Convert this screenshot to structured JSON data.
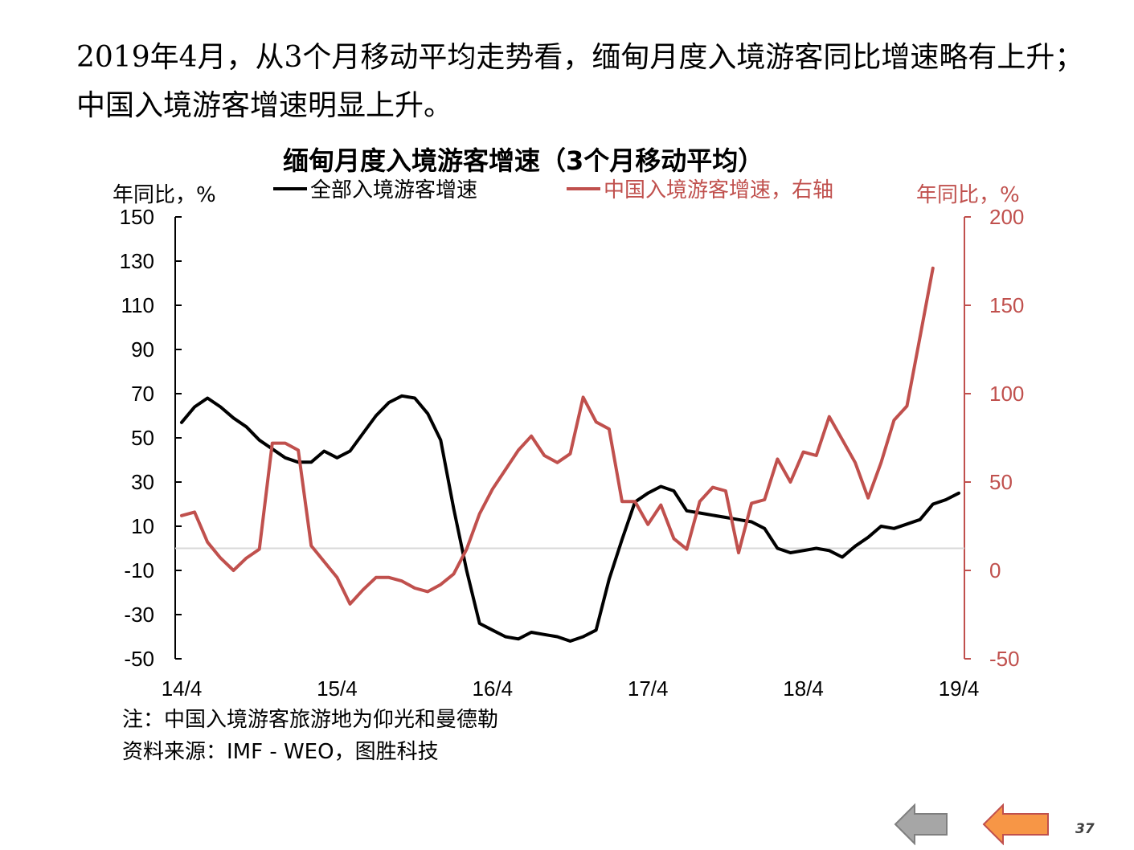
{
  "headline": "2019年4月，从3个月移动平均走势看，缅甸月度入境游客同比增速略有上升；中国入境游客增速明显上升。",
  "notes": {
    "note": "注：中国入境游客旅游地为仰光和曼德勒",
    "source": "资料来源：IMF - WEO，图胜科技"
  },
  "page_number": "37",
  "nav": {
    "prev_icon": "left-arrow-gray-icon",
    "next_icon": "left-arrow-orange-icon"
  },
  "colors": {
    "series_all": "#000000",
    "series_china": "#c0504d",
    "zero_line": "#d9d9d9",
    "nav_gray": "#a6a6a6",
    "nav_orange": "#f79646"
  },
  "chart_data": {
    "type": "line",
    "title": "缅甸月度入境游客增速（3个月移动平均）",
    "ylabel_left": "年同比，%",
    "ylabel_right": "年同比，%",
    "x_tick_labels": [
      "14/4",
      "15/4",
      "16/4",
      "17/4",
      "18/4",
      "19/4"
    ],
    "x_start": "2014-04",
    "x_end": "2019-04",
    "y_left": {
      "min": -50,
      "max": 150,
      "ticks": [
        "150",
        "130",
        "110",
        "90",
        "70",
        "50",
        "30",
        "10",
        "-10",
        "-30",
        "-50"
      ]
    },
    "y_right": {
      "min": -50,
      "max": 200,
      "ticks": [
        "200",
        "150",
        "100",
        "50",
        "0",
        "-50"
      ]
    },
    "legend_placement": "top",
    "series": [
      {
        "name": "全部入境游客增速",
        "axis": "left",
        "values": [
          57,
          64,
          68,
          64,
          59,
          55,
          49,
          45,
          41,
          39,
          39,
          44,
          41,
          44,
          52,
          60,
          66,
          69,
          68,
          61,
          49,
          18,
          -10,
          -34,
          -37,
          -40,
          -41,
          -38,
          -39,
          -40,
          -42,
          -40,
          -37,
          -14,
          4,
          21,
          25,
          28,
          26,
          17,
          16,
          15,
          14,
          13,
          12,
          9,
          0,
          -2,
          -1,
          0,
          -1,
          -4,
          1,
          5,
          10,
          9,
          11,
          13,
          20,
          22,
          25
        ]
      },
      {
        "name": "中国入境游客增速，右轴",
        "axis": "right",
        "values": [
          31,
          33,
          16,
          7,
          0,
          7,
          12,
          72,
          72,
          68,
          14,
          5,
          -4,
          -19,
          -11,
          -4,
          -4,
          -6,
          -10,
          -12,
          -8,
          -2,
          12,
          32,
          46,
          57,
          68,
          76,
          65,
          61,
          66,
          98,
          84,
          80,
          39,
          39,
          26,
          37,
          18,
          12,
          39,
          47,
          45,
          10,
          38,
          40,
          63,
          50,
          67,
          65,
          87,
          74,
          61,
          41,
          61,
          85,
          93,
          132,
          171
        ]
      }
    ]
  }
}
